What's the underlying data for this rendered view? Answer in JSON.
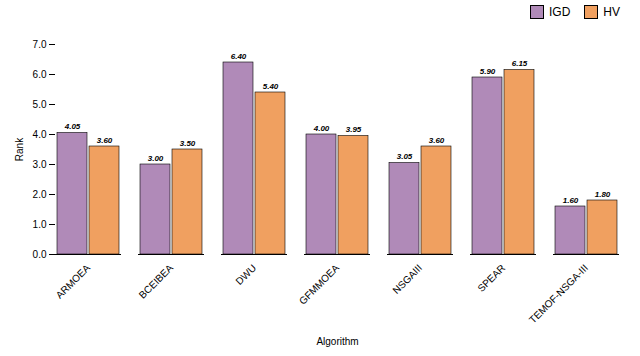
{
  "chart_data": {
    "type": "bar",
    "categories": [
      "ARMOEA",
      "BCEIBEA",
      "DWU",
      "GFMMOEA",
      "NSGAIII",
      "SPEAR",
      "TEMOF-NSGA-III"
    ],
    "series": [
      {
        "name": "IGD",
        "color": "#b08ab8",
        "values": [
          4.05,
          3.0,
          6.4,
          4.0,
          3.05,
          5.9,
          1.6
        ],
        "value_labels": [
          "4.05",
          "3.00",
          "6.40",
          "4.00",
          "3.05",
          "5.90",
          "1.60"
        ]
      },
      {
        "name": "HV",
        "color": "#f0a060",
        "values": [
          3.6,
          3.5,
          5.4,
          3.95,
          3.6,
          6.15,
          1.8
        ],
        "value_labels": [
          "3.60",
          "3.50",
          "5.40",
          "3.95",
          "3.60",
          "6.15",
          "1.80"
        ]
      }
    ],
    "xlabel": "Algorithm",
    "ylabel": "Rank",
    "ylim": [
      0,
      7
    ],
    "yticks": [
      0,
      1,
      2,
      3,
      4,
      5,
      6,
      7
    ],
    "legend": "upper right",
    "data_labels": true,
    "grid": false
  }
}
